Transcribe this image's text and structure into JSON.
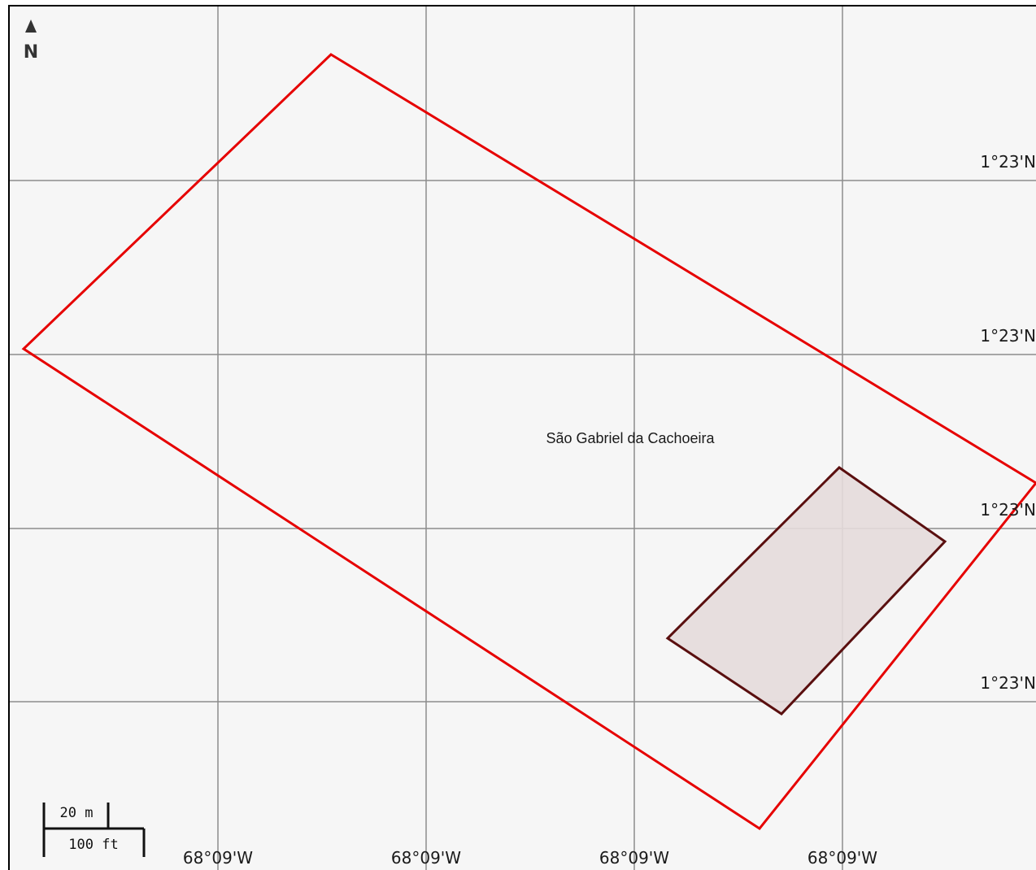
{
  "map": {
    "north_arrow": {
      "letter": "N",
      "icon": "north-arrow-icon"
    },
    "place_label": "São Gabriel da Cachoeira",
    "latitude_labels": [
      "1°23'N",
      "1°23'N",
      "1°23'N",
      "1°23'N"
    ],
    "longitude_labels": [
      "68°09'W",
      "68°09'W",
      "68°09'W",
      "68°09'W"
    ],
    "scale_bar": {
      "metric": "20 m",
      "imperial": "100 ft"
    },
    "colors": {
      "background": "#f6f6f6",
      "grid": "#8c8c8c",
      "outer_boundary": "#e60000",
      "inner_outline": "#5a0f0f",
      "inner_fill": "#e6dcdc"
    }
  }
}
